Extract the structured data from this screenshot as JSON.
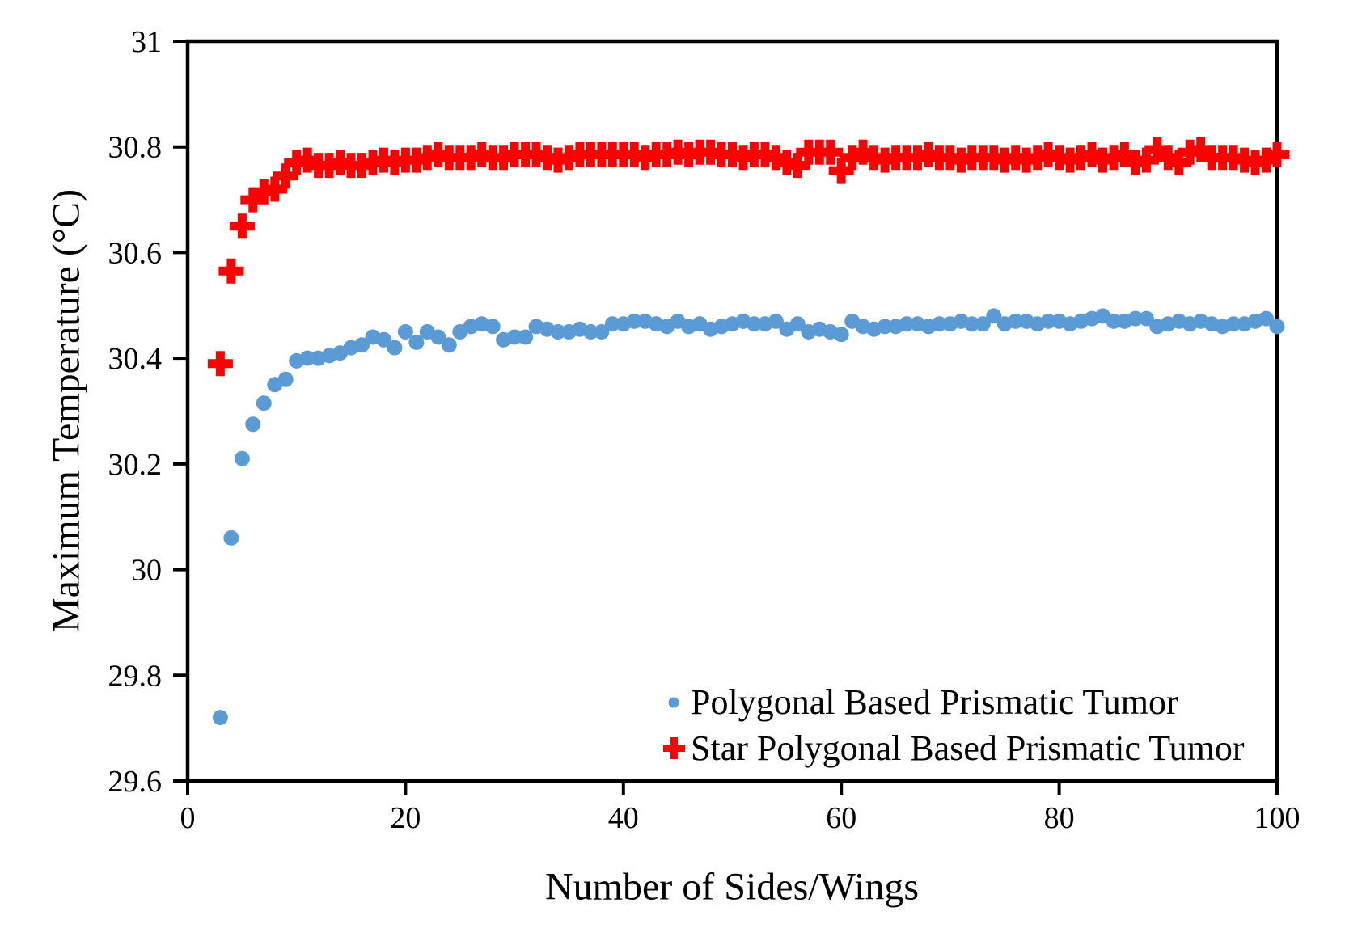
{
  "figure": {
    "background": "#FFFFFF",
    "axis_color": "#000000"
  },
  "chart_data": {
    "type": "scatter",
    "title": "",
    "xlabel": "Number of Sides/Wings",
    "ylabel": "Maximum Temperature (°C)",
    "xlim": [
      0,
      100
    ],
    "ylim": [
      29.6,
      31
    ],
    "x_ticks": [
      0,
      20,
      40,
      60,
      80,
      100
    ],
    "y_ticks": [
      29.6,
      29.8,
      30,
      30.2,
      30.4,
      30.6,
      30.8,
      31
    ],
    "y_tick_labels": [
      "29.6",
      "29.8",
      "30",
      "30.2",
      "30.4",
      "30.6",
      "30.8",
      "31"
    ],
    "grid": false,
    "legend_position": "inside bottom-right",
    "x": [
      3,
      4,
      5,
      6,
      7,
      8,
      9,
      10,
      11,
      12,
      13,
      14,
      15,
      16,
      17,
      18,
      19,
      20,
      21,
      22,
      23,
      24,
      25,
      26,
      27,
      28,
      29,
      30,
      31,
      32,
      33,
      34,
      35,
      36,
      37,
      38,
      39,
      40,
      41,
      42,
      43,
      44,
      45,
      46,
      47,
      48,
      49,
      50,
      51,
      52,
      53,
      54,
      55,
      56,
      57,
      58,
      59,
      60,
      61,
      62,
      63,
      64,
      65,
      66,
      67,
      68,
      69,
      70,
      71,
      72,
      73,
      74,
      75,
      76,
      77,
      78,
      79,
      80,
      81,
      82,
      83,
      84,
      85,
      86,
      87,
      88,
      89,
      90,
      91,
      92,
      93,
      94,
      95,
      96,
      97,
      98,
      99,
      100
    ],
    "series": [
      {
        "name": "Polygonal Based Prismatic Tumor",
        "marker": "circle",
        "color": "#5B9BD5",
        "values": [
          29.72,
          30.06,
          30.21,
          30.275,
          30.315,
          30.35,
          30.36,
          30.395,
          30.4,
          30.4,
          30.405,
          30.41,
          30.42,
          30.425,
          30.44,
          30.435,
          30.42,
          30.45,
          30.43,
          30.45,
          30.44,
          30.425,
          30.45,
          30.46,
          30.465,
          30.46,
          30.435,
          30.44,
          30.44,
          30.46,
          30.455,
          30.45,
          30.45,
          30.455,
          30.45,
          30.45,
          30.465,
          30.465,
          30.47,
          30.47,
          30.465,
          30.46,
          30.47,
          30.46,
          30.465,
          30.455,
          30.46,
          30.465,
          30.47,
          30.465,
          30.465,
          30.47,
          30.455,
          30.465,
          30.45,
          30.455,
          30.45,
          30.445,
          30.47,
          30.46,
          30.455,
          30.46,
          30.46,
          30.465,
          30.465,
          30.46,
          30.465,
          30.465,
          30.47,
          30.465,
          30.465,
          30.48,
          30.465,
          30.47,
          30.47,
          30.465,
          30.47,
          30.47,
          30.465,
          30.47,
          30.475,
          30.48,
          30.47,
          30.47,
          30.475,
          30.475,
          30.46,
          30.465,
          30.47,
          30.465,
          30.47,
          30.465,
          30.46,
          30.465,
          30.465,
          30.47,
          30.475,
          30.46
        ]
      },
      {
        "name": "Star Polygonal Based Prismatic Tumor",
        "marker": "plus",
        "color": "#FF0000",
        "values": [
          30.39,
          30.565,
          30.65,
          30.7,
          30.715,
          30.72,
          30.745,
          30.77,
          30.775,
          30.765,
          30.765,
          30.77,
          30.765,
          30.765,
          30.77,
          30.775,
          30.77,
          30.775,
          30.775,
          30.78,
          30.785,
          30.78,
          30.78,
          30.78,
          30.785,
          30.78,
          30.78,
          30.785,
          30.785,
          30.785,
          30.78,
          30.775,
          30.78,
          30.785,
          30.785,
          30.785,
          30.785,
          30.785,
          30.785,
          30.78,
          30.785,
          30.785,
          30.79,
          30.785,
          30.79,
          30.79,
          30.785,
          30.785,
          30.78,
          30.785,
          30.785,
          30.78,
          30.77,
          30.765,
          30.79,
          30.79,
          30.79,
          30.755,
          30.78,
          30.79,
          30.78,
          30.775,
          30.78,
          30.78,
          30.78,
          30.785,
          30.78,
          30.78,
          30.775,
          30.78,
          30.78,
          30.78,
          30.775,
          30.78,
          30.775,
          30.78,
          30.785,
          30.78,
          30.775,
          30.78,
          30.785,
          30.775,
          30.78,
          30.785,
          30.77,
          30.775,
          30.795,
          30.78,
          30.77,
          30.79,
          30.795,
          30.78,
          30.78,
          30.78,
          30.775,
          30.77,
          30.775,
          30.785
        ]
      }
    ]
  }
}
